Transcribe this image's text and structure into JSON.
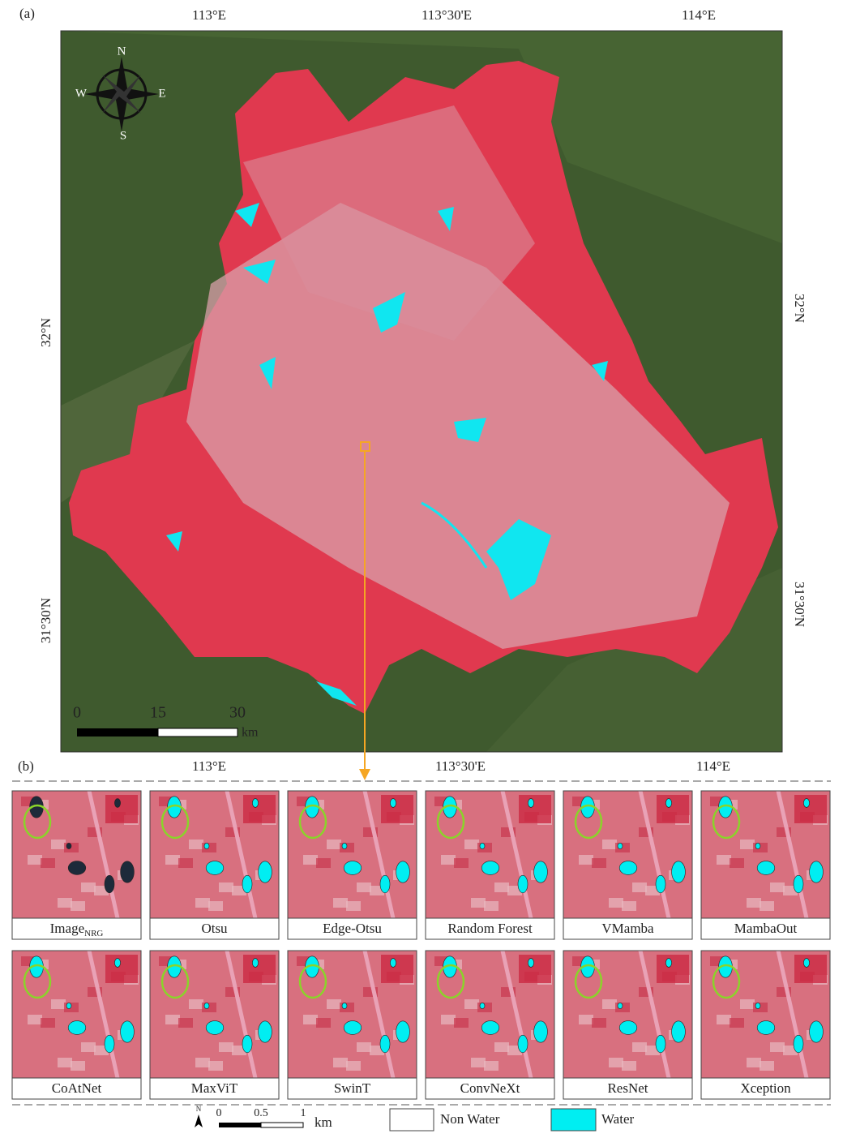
{
  "panel_a": {
    "label": "(a)",
    "lon_labels": [
      "113°E",
      "113°30'E",
      "114°E"
    ],
    "lat_labels": [
      "32°N",
      "31°30'N"
    ],
    "compass": {
      "n": "N",
      "s": "S",
      "w": "W",
      "e": "E"
    },
    "scale_bar": {
      "ticks": [
        "0",
        "15",
        "30"
      ],
      "unit": "km"
    }
  },
  "panel_b": {
    "label": "(b)",
    "tiles": [
      {
        "label": "Image",
        "subscript": "NRG"
      },
      {
        "label": "Otsu"
      },
      {
        "label": "Edge-Otsu"
      },
      {
        "label": "Random Forest"
      },
      {
        "label": "VMamba"
      },
      {
        "label": "MambaOut"
      },
      {
        "label": "CoAtNet"
      },
      {
        "label": "MaxViT"
      },
      {
        "label": "SwinT"
      },
      {
        "label": "ConvNeXt"
      },
      {
        "label": "ResNet"
      },
      {
        "label": "Xception"
      }
    ],
    "scale_bar": {
      "north": "N",
      "ticks": [
        "0",
        "0.5",
        "1"
      ],
      "unit": "km"
    },
    "legend": [
      {
        "label": "Non Water",
        "color": "#ffffff"
      },
      {
        "label": "Water",
        "color": "#00eef2"
      }
    ]
  }
}
